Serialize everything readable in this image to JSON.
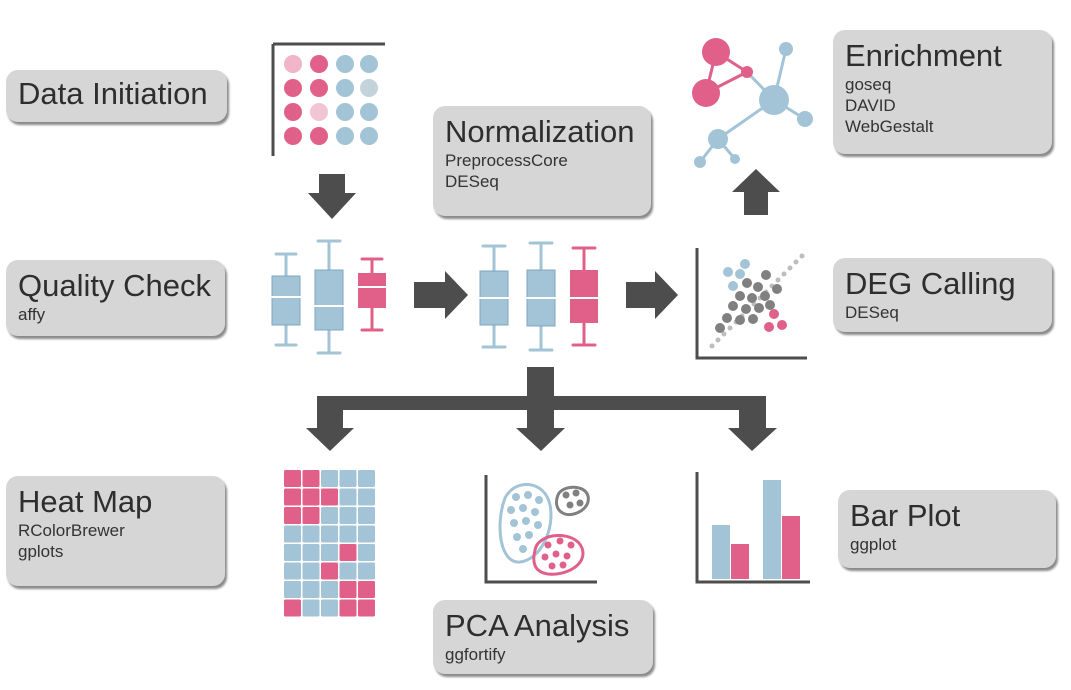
{
  "steps": {
    "data_initiation": {
      "title": "Data Initiation"
    },
    "normalization": {
      "title": "Normalization",
      "tools": [
        "PreprocessCore",
        "DESeq"
      ]
    },
    "enrichment": {
      "title": "Enrichment",
      "tools": [
        "goseq",
        "DAVID",
        "WebGestalt"
      ]
    },
    "quality_check": {
      "title": "Quality Check",
      "tools": [
        "affy"
      ]
    },
    "deg_calling": {
      "title": "DEG Calling",
      "tools": [
        "DESeq"
      ]
    },
    "heat_map": {
      "title": "Heat Map",
      "tools": [
        "RColorBrewer",
        "gplots"
      ]
    },
    "bar_plot": {
      "title": "Bar Plot",
      "tools": [
        "ggplot"
      ]
    },
    "pca_analysis": {
      "title": "PCA Analysis",
      "tools": [
        "ggfortify"
      ]
    }
  },
  "colors": {
    "blue": "#a3c3d6",
    "blue_dark": "#7ea7bf",
    "pink": "#e0608a",
    "pink_dark": "#c94571",
    "gray": "#808080",
    "arrow": "#4d4d4d",
    "box": "#d6d6d6"
  }
}
